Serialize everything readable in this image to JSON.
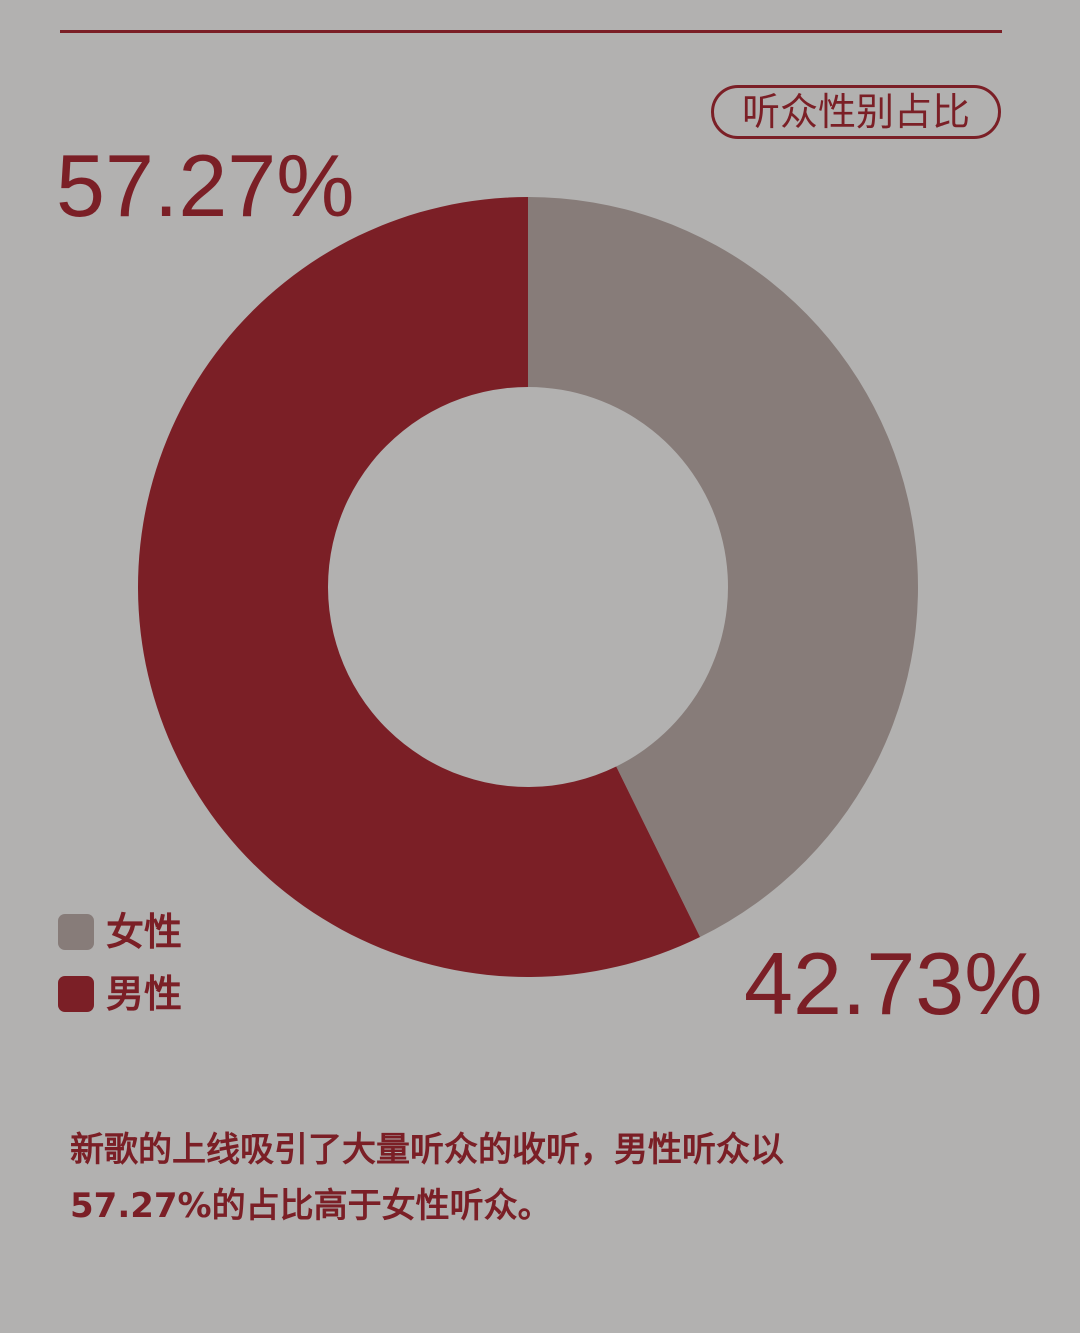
{
  "colors": {
    "accent": "#7b1f26",
    "female": "#877c79",
    "background": "#b2b1b0"
  },
  "title_badge": "听众性别占比",
  "labels": {
    "male_pct": "57.27%",
    "female_pct": "42.73%"
  },
  "legend": [
    {
      "label": "女性",
      "color": "#877c79"
    },
    {
      "label": "男性",
      "color": "#7b1f26"
    }
  ],
  "caption": {
    "line1": "新歌的上线吸引了大量听众的收听，男性听众以",
    "line2": "57.27%的占比高于女性听众。"
  },
  "chart_data": {
    "type": "pie",
    "variant": "donut",
    "title": "听众性别占比",
    "categories": [
      "女性",
      "男性"
    ],
    "values": [
      42.73,
      57.27
    ],
    "colors": [
      "#877c79",
      "#7b1f26"
    ],
    "start": "top",
    "direction": "clockwise",
    "legend_position": "bottom-left"
  }
}
